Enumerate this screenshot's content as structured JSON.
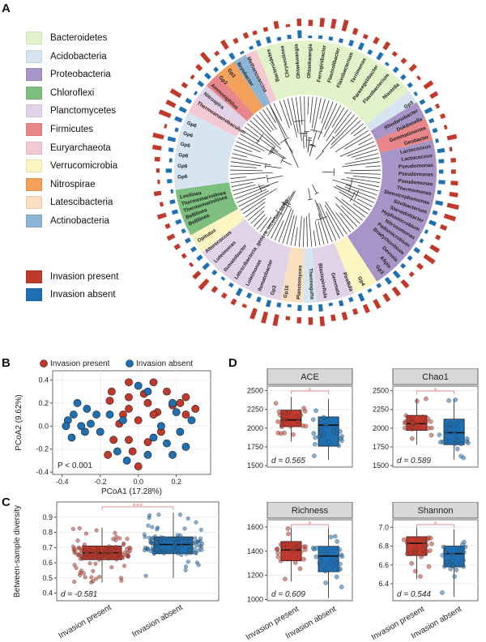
{
  "panels": {
    "a": "A",
    "b": "B",
    "c": "C",
    "d": "D"
  },
  "legend": {
    "phyla": [
      {
        "label": "Bacteroidetes",
        "color": "#e2f3c9"
      },
      {
        "label": "Acidobacteria",
        "color": "#d6e5f0"
      },
      {
        "label": "Proteobacteria",
        "color": "#a895c8"
      },
      {
        "label": "Chloroflexi",
        "color": "#7cbf7e"
      },
      {
        "label": "Planctomycetes",
        "color": "#e0d3e8"
      },
      {
        "label": "Firmicutes",
        "color": "#e9868a"
      },
      {
        "label": "Euryarchaeota",
        "color": "#f4c9d2"
      },
      {
        "label": "Verrucomicrobia",
        "color": "#fbf5c2"
      },
      {
        "label": "Nitrospirae",
        "color": "#f3a15a"
      },
      {
        "label": "Latescibacteria",
        "color": "#fadfc0"
      },
      {
        "label": "Actinobacteria",
        "color": "#8cb4d6"
      }
    ],
    "invasion": [
      {
        "label": "Invasion present",
        "color": "#c0392b"
      },
      {
        "label": "Invasion absent",
        "color": "#1f6fb3"
      }
    ]
  },
  "tree_labels": {
    "bacteroidetes": [
      "Bacteroidetes",
      "Chryseolinea",
      "Ohtaekwangia",
      "Ohtaekwangia",
      "Ferruginibacter",
      "Flavisolibacter",
      "Flavobacterium",
      "Terrimonas",
      "Parasegetibacter",
      "Flavobacterium",
      "Niastella"
    ],
    "top_left": [
      "Thermoanaerobaculum",
      "Nitrospira",
      "Ammoniphilus",
      "Gp3",
      "Gp1",
      "Bryobacter",
      "Methanosarcina"
    ],
    "proteobacteria": [
      "Gp3",
      "Rhodanobacter",
      "Dokdonella",
      "Gemmatimonas",
      "Geobacter",
      "Lactococcus",
      "Lactococcus",
      "Pseudomonas",
      "Pseudomonas",
      "Pseudomonas",
      "Thermomonas",
      "Stenotrophomonas",
      "Silvibacterium",
      "Steroidobacter",
      "Hyphomicrobium",
      "Nitrosomonas",
      "Pedomicrobium",
      "Bradyrhizobium",
      "Devosia",
      "Afipia",
      "Gp3"
    ],
    "acidobacteria": [
      "Gp6",
      "Gp6",
      "Gp6",
      "Gp6",
      "Gp6",
      "Gp6"
    ],
    "chloroflexi": [
      "Bellilinea",
      "Bellilinea",
      "Thermomarinilinea",
      "Thermomarinilinea",
      "Levilinea"
    ],
    "planctomycetes": [
      "Gp4",
      "Pirellula",
      "Gemmata",
      "Blastopirellula",
      "Thermogutta",
      "Planctomyces",
      "Gp16",
      "Gp3",
      "Ilumatobacter",
      "Luteimonas"
    ],
    "misc": [
      "Latescibacteria_genera_incertae_sedis",
      "Ilumatobacter",
      "Luteimonas",
      "Alterococcus",
      "Opitutus"
    ]
  },
  "chart_data": [
    {
      "type": "scatter",
      "title": "",
      "xlabel": "PCoA1 (17.28%)",
      "ylabel": "PCoA2 (9.62%)",
      "xlim": [
        -0.45,
        0.38
      ],
      "ylim": [
        -0.42,
        0.48
      ],
      "xticks": [
        -0.4,
        -0.2,
        0.0,
        0.2
      ],
      "yticks": [
        -0.4,
        -0.2,
        0.0,
        0.2,
        0.4
      ],
      "xtick_labels": [
        "-0.4",
        "-0.2",
        "0.0",
        "0.2"
      ],
      "ytick_labels": [
        "-0.4",
        "-0.2",
        "0.0",
        "0.2",
        "0.4"
      ],
      "annotation": "P < 0.001",
      "legend": [
        "Invasion present",
        "Invasion absent"
      ],
      "series": [
        {
          "name": "Invasion present",
          "color": "#c0392b",
          "points": [
            [
              -0.05,
              0.38
            ],
            [
              -0.14,
              0.3
            ],
            [
              -0.15,
              0.22
            ],
            [
              -0.05,
              0.25
            ],
            [
              0.03,
              0.28
            ],
            [
              0.05,
              0.2
            ],
            [
              0.15,
              0.3
            ],
            [
              0.22,
              0.2
            ],
            [
              0.25,
              0.25
            ],
            [
              0.3,
              0.15
            ],
            [
              0.18,
              0.18
            ],
            [
              0.1,
              0.12
            ],
            [
              -0.05,
              0.15
            ],
            [
              -0.08,
              0.1
            ],
            [
              0.0,
              0.05
            ],
            [
              0.08,
              0.1
            ],
            [
              0.12,
              -0.05
            ],
            [
              -0.1,
              0.02
            ],
            [
              -0.05,
              -0.12
            ],
            [
              -0.13,
              -0.12
            ],
            [
              -0.03,
              -0.22
            ],
            [
              0.0,
              -0.35
            ],
            [
              -0.16,
              -0.25
            ],
            [
              0.05,
              -0.14
            ],
            [
              0.25,
              0.1
            ],
            [
              0.08,
              0.38
            ]
          ]
        },
        {
          "name": "Invasion absent",
          "color": "#1f6fb3",
          "points": [
            [
              -0.32,
              0.2
            ],
            [
              -0.27,
              0.15
            ],
            [
              -0.34,
              0.1
            ],
            [
              -0.37,
              0.05
            ],
            [
              -0.3,
              0.0
            ],
            [
              -0.25,
              0.02
            ],
            [
              -0.22,
              0.1
            ],
            [
              -0.2,
              -0.05
            ],
            [
              -0.35,
              -0.1
            ],
            [
              -0.28,
              -0.05
            ],
            [
              -0.38,
              0.0
            ],
            [
              -0.15,
              0.1
            ],
            [
              -0.08,
              0.05
            ],
            [
              0.0,
              0.35
            ],
            [
              0.05,
              0.3
            ],
            [
              0.18,
              0.2
            ],
            [
              0.2,
              0.12
            ],
            [
              0.28,
              0.05
            ],
            [
              0.22,
              -0.05
            ],
            [
              0.12,
              0.0
            ],
            [
              0.15,
              -0.15
            ],
            [
              0.08,
              -0.1
            ],
            [
              0.05,
              -0.25
            ],
            [
              -0.06,
              -0.3
            ],
            [
              0.18,
              -0.25
            ],
            [
              -0.11,
              -0.22
            ],
            [
              0.25,
              -0.18
            ]
          ]
        }
      ]
    },
    {
      "type": "box",
      "title": "",
      "xlabel": "",
      "ylabel": "Between-sample diversity",
      "ylim": [
        0.35,
        1.0
      ],
      "yticks": [
        0.4,
        0.5,
        0.6,
        0.7,
        0.8,
        0.9
      ],
      "ytick_labels": [
        "0.4",
        "0.5",
        "0.6",
        "0.7",
        "0.8",
        "0.9"
      ],
      "categories": [
        "Invasion present",
        "Invasion absent"
      ],
      "colors": [
        "#c0392b",
        "#1f6fb3"
      ],
      "boxes": [
        {
          "min": 0.47,
          "q1": 0.62,
          "median": 0.665,
          "q3": 0.71,
          "max": 0.83
        },
        {
          "min": 0.5,
          "q1": 0.66,
          "median": 0.72,
          "q3": 0.77,
          "max": 0.93
        }
      ],
      "significance": "***",
      "annotation": "d = -0.581"
    },
    {
      "type": "box",
      "title": "ACE",
      "ylim": [
        1480,
        2560
      ],
      "yticks": [
        1500,
        1750,
        2000,
        2250,
        2500
      ],
      "ytick_labels": [
        "1500",
        "1750",
        "2000",
        "2250",
        "2500"
      ],
      "categories": [
        "Invasion present",
        "Invasion absent"
      ],
      "colors": [
        "#c0392b",
        "#1f6fb3"
      ],
      "boxes": [
        {
          "min": 1820,
          "q1": 2020,
          "median": 2110,
          "q3": 2240,
          "max": 2420
        },
        {
          "min": 1580,
          "q1": 1760,
          "median": 2040,
          "q3": 2150,
          "max": 2390
        }
      ],
      "significance": "*",
      "annotation": "d = 0.565"
    },
    {
      "type": "box",
      "title": "Chao1",
      "ylim": [
        1480,
        2560
      ],
      "yticks": [
        1500,
        1750,
        2000,
        2250,
        2500
      ],
      "ytick_labels": [
        "1500",
        "1750",
        "2000",
        "2250",
        "2500"
      ],
      "categories": [
        "Invasion present",
        "Invasion absent"
      ],
      "colors": [
        "#c0392b",
        "#1f6fb3"
      ],
      "boxes": [
        {
          "min": 1780,
          "q1": 1970,
          "median": 2060,
          "q3": 2170,
          "max": 2400
        },
        {
          "min": 1580,
          "q1": 1780,
          "median": 1940,
          "q3": 2120,
          "max": 2390
        }
      ],
      "significance": "*",
      "annotation": "d = 0.589"
    },
    {
      "type": "box",
      "title": "Richness",
      "ylim": [
        990,
        1660
      ],
      "yticks": [
        1000,
        1200,
        1400,
        1600
      ],
      "ytick_labels": [
        "1000",
        "1200",
        "1400",
        "1600"
      ],
      "categories": [
        "Invasion present",
        "Invasion absent"
      ],
      "colors": [
        "#c0392b",
        "#1f6fb3"
      ],
      "boxes": [
        {
          "min": 1150,
          "q1": 1320,
          "median": 1410,
          "q3": 1480,
          "max": 1600
        },
        {
          "min": 1010,
          "q1": 1230,
          "median": 1360,
          "q3": 1440,
          "max": 1590
        }
      ],
      "significance": "*",
      "annotation": "d = 0.609"
    },
    {
      "type": "box",
      "title": "Shannon",
      "ylim": [
        6.22,
        7.08
      ],
      "yticks": [
        6.4,
        6.6,
        6.8,
        7.0
      ],
      "ytick_labels": [
        "6.4",
        "6.6",
        "6.8",
        "7.0"
      ],
      "categories": [
        "Invasion present",
        "Invasion absent"
      ],
      "colors": [
        "#c0392b",
        "#1f6fb3"
      ],
      "boxes": [
        {
          "min": 6.45,
          "q1": 6.7,
          "median": 6.83,
          "q3": 6.9,
          "max": 7.02
        },
        {
          "min": 6.26,
          "q1": 6.58,
          "median": 6.72,
          "q3": 6.8,
          "max": 6.98
        }
      ],
      "significance": "*",
      "annotation": "d = 0.544"
    }
  ]
}
